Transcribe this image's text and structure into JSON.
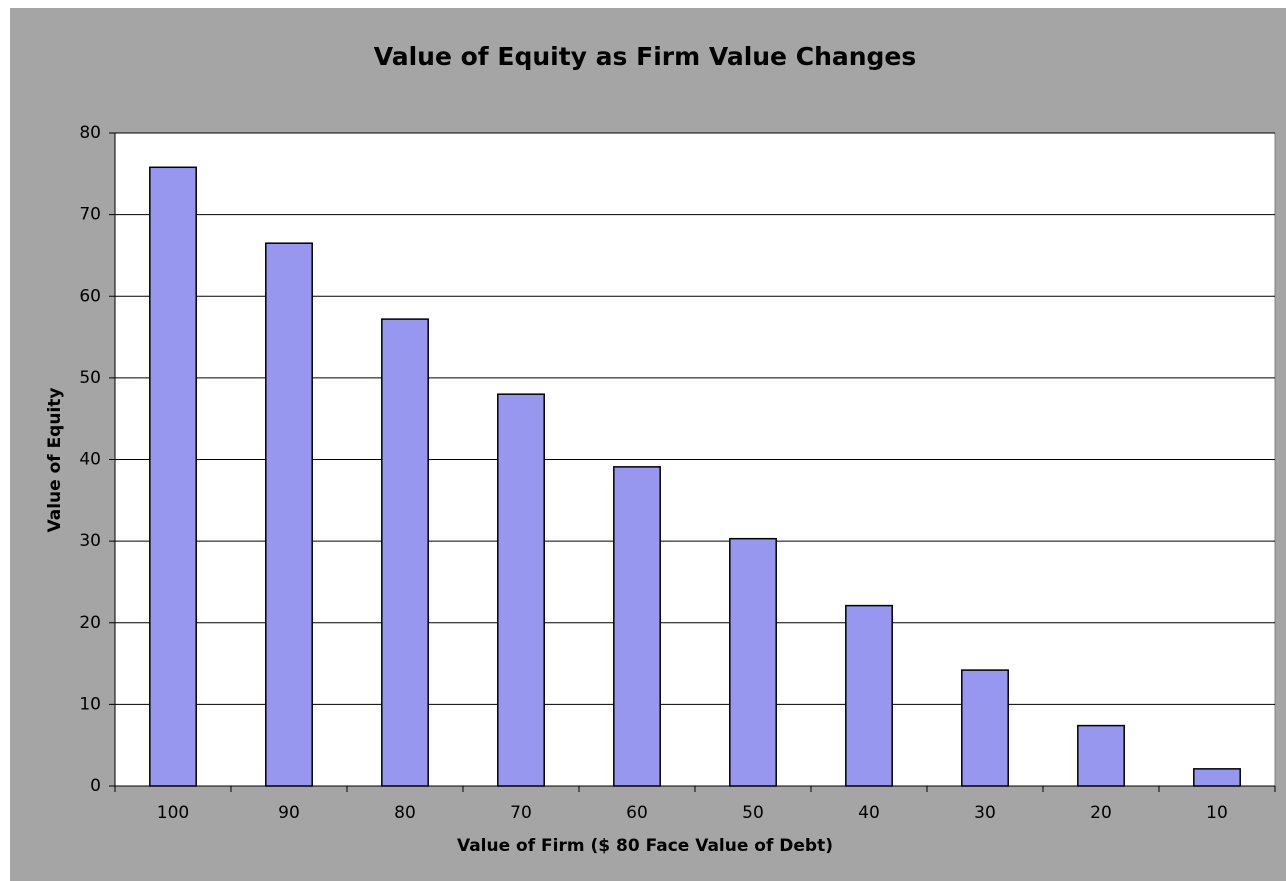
{
  "chart_data": {
    "type": "bar",
    "title": "Value of Equity as Firm Value Changes",
    "x_label": "Value of Firm ($ 80 Face Value of Debt)",
    "y_label": "Value of Equity",
    "categories": [
      "100",
      "90",
      "80",
      "70",
      "60",
      "50",
      "40",
      "30",
      "20",
      "10"
    ],
    "values": [
      75.8,
      66.5,
      57.2,
      48.0,
      39.1,
      30.3,
      22.1,
      14.2,
      7.4,
      2.1
    ],
    "color": "#9797f0",
    "ylim": [
      0,
      80
    ],
    "yticks": [
      0,
      10,
      20,
      30,
      40,
      50,
      60,
      70,
      80
    ],
    "grid": true
  }
}
